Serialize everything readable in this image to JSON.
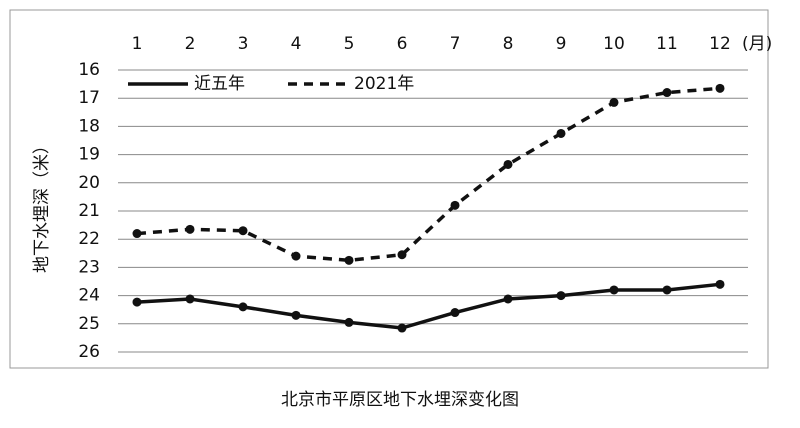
{
  "chart_data": {
    "type": "line",
    "title": "北京市平原区地下水埋深变化图",
    "y_label": "地下水埋深（米）",
    "x_unit": "(月)",
    "categories": [
      "1",
      "2",
      "3",
      "4",
      "5",
      "6",
      "7",
      "8",
      "9",
      "10",
      "11",
      "12"
    ],
    "ylim": [
      16,
      26
    ],
    "yticks": [
      16,
      17,
      18,
      19,
      20,
      21,
      22,
      23,
      24,
      25,
      26
    ],
    "y_reversed": true,
    "grid": true,
    "legend": "top-left",
    "series": [
      {
        "name": "近五年",
        "color": "#111111",
        "dash": false,
        "values": [
          24.23,
          24.12,
          24.4,
          24.7,
          24.95,
          25.15,
          24.6,
          24.12,
          24.0,
          23.8,
          23.8,
          23.6
        ]
      },
      {
        "name": "2021年",
        "color": "#111111",
        "dash": true,
        "values": [
          21.8,
          21.65,
          21.7,
          22.6,
          22.75,
          22.55,
          20.8,
          19.35,
          18.25,
          17.15,
          16.8,
          16.65
        ]
      }
    ]
  }
}
